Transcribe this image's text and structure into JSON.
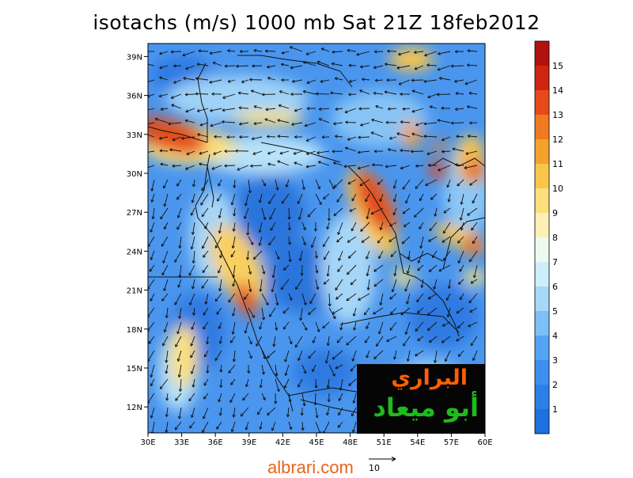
{
  "title": "isotachs (m/s) 1000 mb Sat 21Z 18feb2012",
  "footer": {
    "site": "albrari.com",
    "ref_vector_label": "10"
  },
  "logo": {
    "line1": "البراري",
    "line2": "أبو ميعاد"
  },
  "map": {
    "lon_ticks": [
      "30E",
      "33E",
      "36E",
      "39E",
      "42E",
      "45E",
      "48E",
      "51E",
      "54E",
      "57E",
      "60E"
    ],
    "lat_ticks": [
      "39N",
      "36N",
      "33N",
      "30N",
      "27N",
      "24N",
      "21N",
      "18N",
      "15N",
      "12N"
    ],
    "lon_range": [
      30,
      60
    ],
    "lat_range": [
      10,
      40
    ]
  },
  "colorbar": {
    "labels": [
      "1",
      "2",
      "3",
      "4",
      "5",
      "6",
      "7",
      "8",
      "9",
      "10",
      "11",
      "12",
      "13",
      "14",
      "15"
    ],
    "colors": [
      "#1e6fe0",
      "#2d7fe8",
      "#3d8fef",
      "#55a4f4",
      "#7dbff7",
      "#a7d8f8",
      "#cdeefa",
      "#eef9ef",
      "#fdf0b5",
      "#fbe07d",
      "#f9c54a",
      "#f5a22c",
      "#ef7a20",
      "#e64a18",
      "#cf2412",
      "#b0120e"
    ]
  },
  "colors": {
    "footer": "#e8641e",
    "logo_orange": "#ff5f00",
    "logo_green": "#1bbd1b"
  }
}
